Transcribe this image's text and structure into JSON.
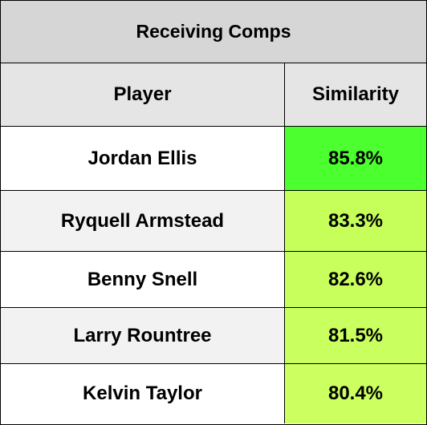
{
  "table": {
    "title": "Receiving Comps",
    "headers": {
      "player": "Player",
      "similarity": "Similarity"
    },
    "rows": [
      {
        "player": "Jordan Ellis",
        "similarity": "85.8%",
        "player_bg": "#ffffff",
        "sim_bg": "#4cff2e"
      },
      {
        "player": "Ryquell Armstead",
        "similarity": "83.3%",
        "player_bg": "#f2f2f2",
        "sim_bg": "#c6ff5a"
      },
      {
        "player": "Benny Snell",
        "similarity": "82.6%",
        "player_bg": "#ffffff",
        "sim_bg": "#c8ff5c"
      },
      {
        "player": "Larry Rountree",
        "similarity": "81.5%",
        "player_bg": "#f2f2f2",
        "sim_bg": "#c9ff5e"
      },
      {
        "player": "Kelvin Taylor",
        "similarity": "80.4%",
        "player_bg": "#ffffff",
        "sim_bg": "#ccff60"
      }
    ]
  }
}
